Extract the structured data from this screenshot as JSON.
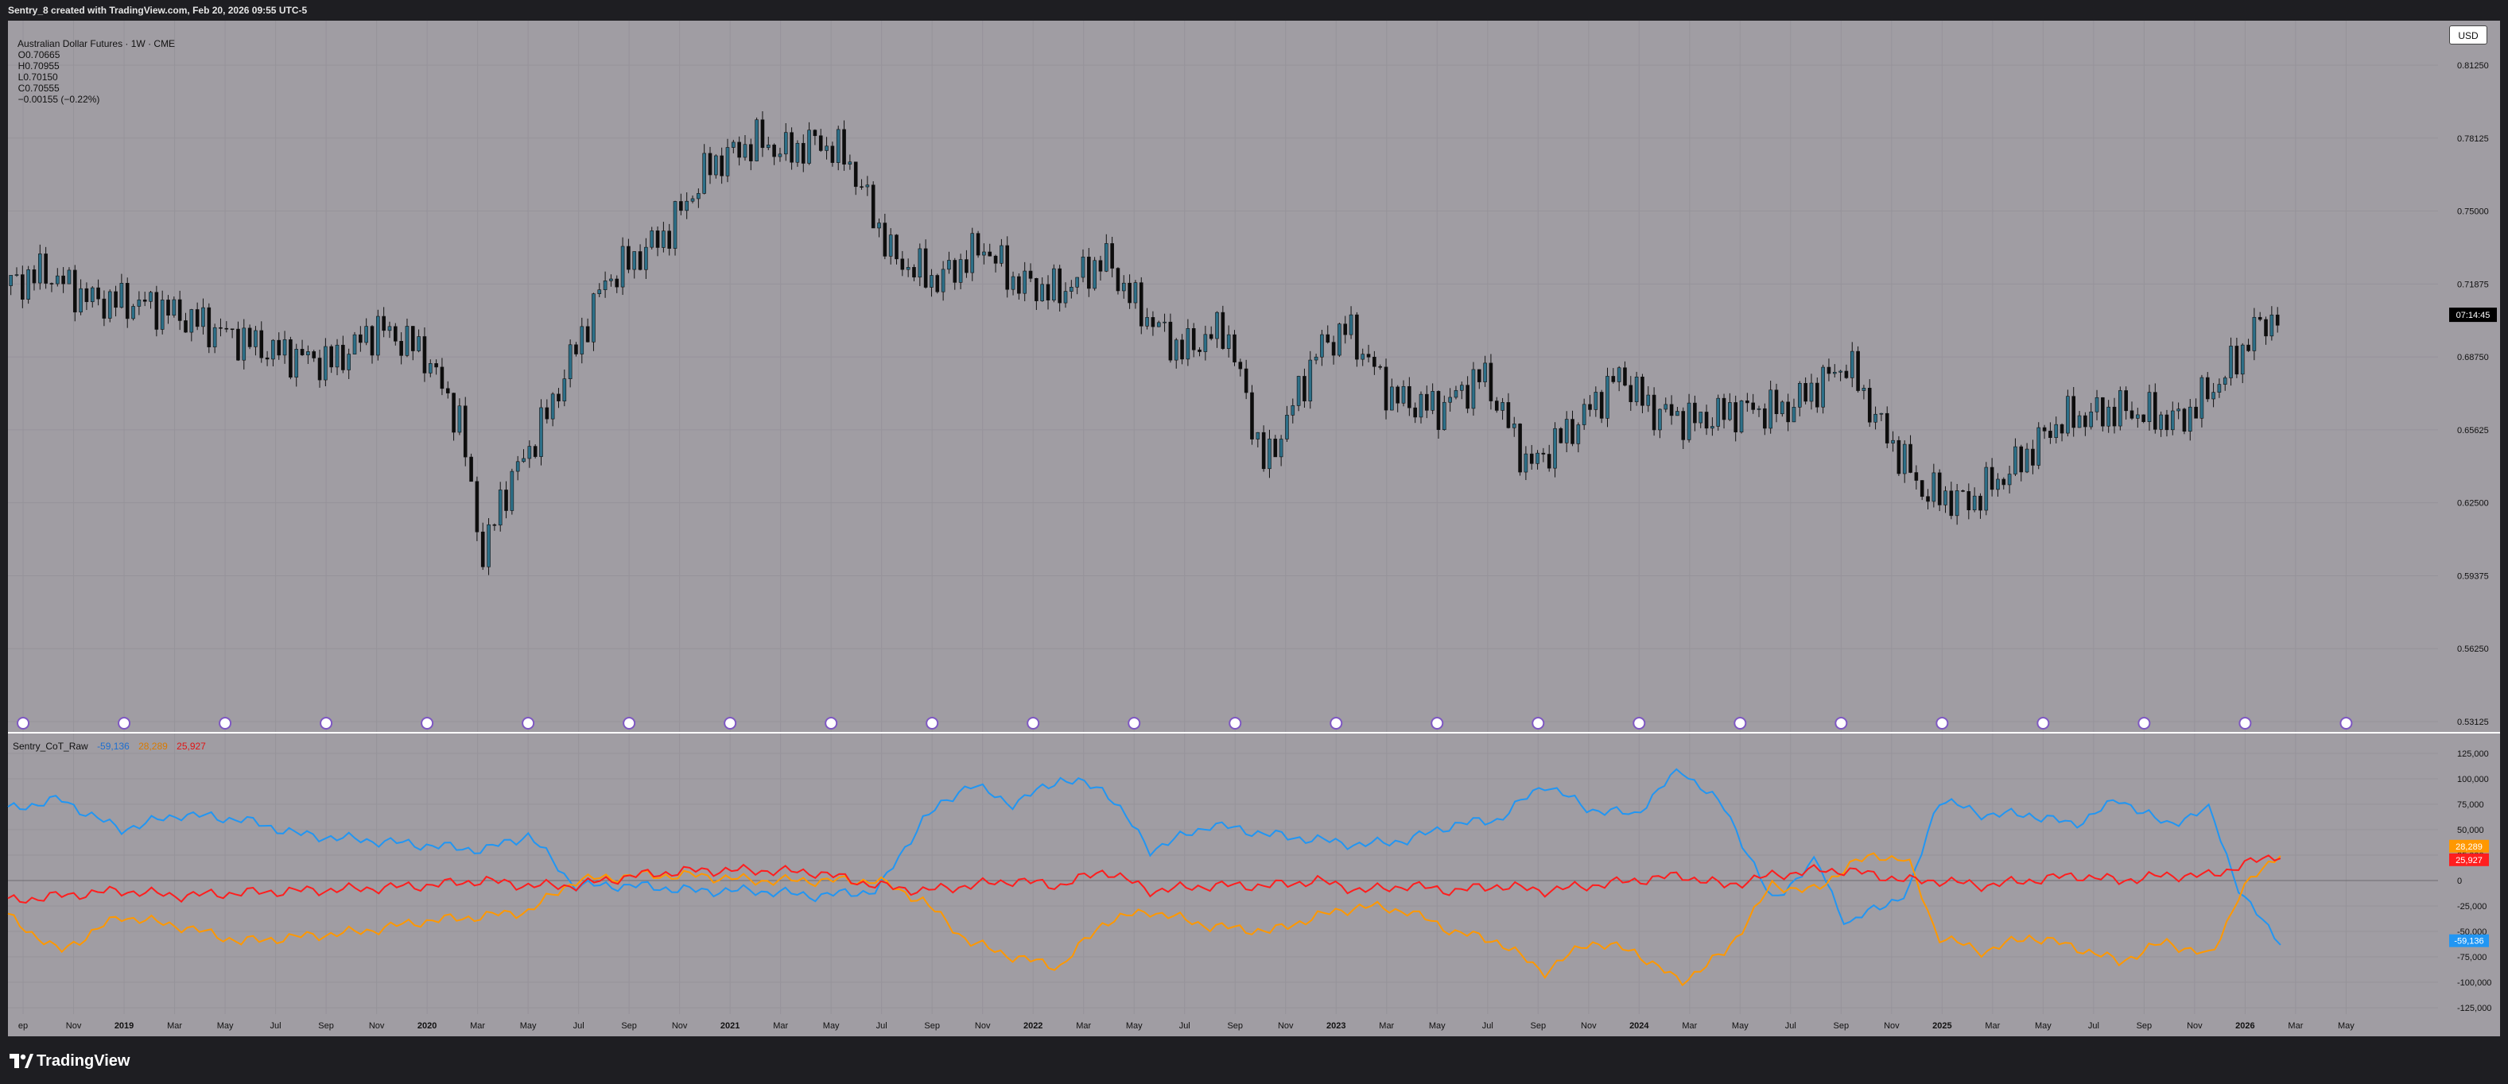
{
  "caption": "Sentry_8 created with TradingView.com, Feb 20, 2026 09:55 UTC-5",
  "currency_button": "USD",
  "footer_brand": "TradingView",
  "legend": {
    "symbol": "Australian Dollar Futures · 1W · CME",
    "open": "O0.70665",
    "high": "H0.70955",
    "low": "L0.70150",
    "close": "C0.70555",
    "change": "−0.00155 (−0.22%)"
  },
  "indicator_legend": {
    "name": "Sentry_CoT_Raw",
    "value_blue": "-59,136",
    "value_orange": "28,289",
    "value_red": "25,927"
  },
  "time_axis_labels": [
    "ep",
    "Nov",
    "2019",
    "Mar",
    "May",
    "Jul",
    "Sep",
    "Nov",
    "2020",
    "Mar",
    "May",
    "Jul",
    "Sep",
    "Nov",
    "2021",
    "Mar",
    "May",
    "Jul",
    "Sep",
    "Nov",
    "2022",
    "Mar",
    "May",
    "Jul",
    "Sep",
    "Nov",
    "2023",
    "Mar",
    "May",
    "Jul",
    "Sep",
    "Nov",
    "2024",
    "Mar",
    "May",
    "Jul",
    "Sep",
    "Nov",
    "2025",
    "Mar",
    "May",
    "Jul",
    "Sep",
    "Nov",
    "2026",
    "Mar",
    "May"
  ],
  "colors": {
    "background": "#a09da3",
    "candle_up": "#2c6f88",
    "candle_down": "#0d0d0d",
    "blue_line": "#2196f3",
    "orange_line": "#ff9800",
    "red_line": "#ff1e1e"
  },
  "chart_data": [
    {
      "type": "candlestick",
      "title": "Australian Dollar Futures · 1W · CME",
      "ylim": [
        0.53125,
        0.8125
      ],
      "y_ticks": [
        "0.81250",
        "0.78125",
        "0.75000",
        "0.71875",
        "0.68750",
        "0.65625",
        "0.62500",
        "0.59375",
        "0.56250",
        "0.53125"
      ],
      "current_label": "07:14:45",
      "current_price": 0.70555,
      "series_anchors": {
        "x_years": [
          2018.63,
          2018.75,
          2018.9,
          2019.1,
          2019.3,
          2019.5,
          2019.7,
          2019.85,
          2020.0,
          2020.12,
          2020.2,
          2020.25,
          2020.4,
          2020.6,
          2020.8,
          2020.95,
          2021.1,
          2021.2,
          2021.3,
          2021.4,
          2021.55,
          2021.7,
          2021.85,
          2021.95,
          2022.1,
          2022.25,
          2022.35,
          2022.5,
          2022.65,
          2022.78,
          2022.95,
          2023.05,
          2023.2,
          2023.35,
          2023.5,
          2023.65,
          2023.8,
          2023.95,
          2024.05,
          2024.2,
          2024.35,
          2024.5,
          2024.6,
          2024.7,
          2024.8,
          2024.95,
          2025.1,
          2025.25,
          2025.4,
          2025.6,
          2025.8,
          2025.95,
          2026.05,
          2026.13
        ],
        "close": [
          0.718,
          0.724,
          0.712,
          0.71,
          0.7,
          0.69,
          0.685,
          0.7,
          0.69,
          0.66,
          0.6,
          0.625,
          0.66,
          0.72,
          0.74,
          0.77,
          0.78,
          0.775,
          0.78,
          0.773,
          0.73,
          0.72,
          0.735,
          0.72,
          0.715,
          0.73,
          0.71,
          0.69,
          0.7,
          0.64,
          0.69,
          0.7,
          0.67,
          0.665,
          0.68,
          0.64,
          0.658,
          0.68,
          0.665,
          0.66,
          0.665,
          0.665,
          0.675,
          0.685,
          0.66,
          0.63,
          0.625,
          0.64,
          0.66,
          0.665,
          0.66,
          0.68,
          0.7,
          0.706
        ]
      }
    },
    {
      "type": "line",
      "title": "Sentry_CoT_Raw",
      "ylim": [
        -125000,
        125000
      ],
      "y_ticks": [
        "125,000",
        "100,000",
        "75,000",
        "50,000",
        "25,000",
        "0",
        "-25,000",
        "-50,000",
        "-75,000",
        "-100,000",
        "-125,000"
      ],
      "x_years": [
        2018.63,
        2018.8,
        2019.0,
        2019.2,
        2019.4,
        2019.6,
        2019.8,
        2020.0,
        2020.2,
        2020.35,
        2020.5,
        2020.7,
        2020.9,
        2021.1,
        2021.3,
        2021.5,
        2021.65,
        2021.8,
        2021.95,
        2022.1,
        2022.25,
        2022.4,
        2022.6,
        2022.8,
        2022.95,
        2023.1,
        2023.25,
        2023.4,
        2023.55,
        2023.7,
        2023.85,
        2024.0,
        2024.15,
        2024.3,
        2024.45,
        2024.6,
        2024.7,
        2024.8,
        2024.9,
        2025.0,
        2025.15,
        2025.3,
        2025.45,
        2025.6,
        2025.75,
        2025.9,
        2026.0,
        2026.13
      ],
      "series": [
        {
          "color": "blue",
          "values": [
            70000,
            80000,
            50000,
            65000,
            60000,
            45000,
            40000,
            35000,
            30000,
            45000,
            -5000,
            -5000,
            -10000,
            -10000,
            -15000,
            -10000,
            60000,
            95000,
            75000,
            100000,
            90000,
            30000,
            55000,
            45000,
            40000,
            35000,
            40000,
            55000,
            60000,
            95000,
            70000,
            65000,
            110000,
            70000,
            -20000,
            20000,
            -45000,
            -25000,
            -15000,
            80000,
            65000,
            65000,
            55000,
            80000,
            55000,
            70000,
            -15000,
            -59136
          ]
        },
        {
          "color": "orange",
          "values": [
            -35000,
            -70000,
            -35000,
            -45000,
            -60000,
            -55000,
            -50000,
            -40000,
            -35000,
            -30000,
            0,
            5000,
            5000,
            0,
            0,
            0,
            -20000,
            -60000,
            -75000,
            -85000,
            -40000,
            -30000,
            -45000,
            -50000,
            -35000,
            -25000,
            -30000,
            -50000,
            -60000,
            -90000,
            -60000,
            -70000,
            -100000,
            -70000,
            -5000,
            -10000,
            15000,
            25000,
            20000,
            -55000,
            -70000,
            -55000,
            -65000,
            -80000,
            -60000,
            -75000,
            -10000,
            28289
          ]
        },
        {
          "color": "red",
          "values": [
            -20000,
            -15000,
            -10000,
            -15000,
            -12000,
            -10000,
            -8000,
            -5000,
            0,
            -5000,
            -5000,
            5000,
            10000,
            10000,
            8000,
            -5000,
            -10000,
            -5000,
            0,
            -5000,
            10000,
            -10000,
            -5000,
            -5000,
            0,
            -10000,
            -5000,
            -10000,
            -5000,
            -10000,
            -5000,
            0,
            5000,
            -5000,
            5000,
            10000,
            10000,
            5000,
            0,
            0,
            -5000,
            0,
            5000,
            0,
            5000,
            5000,
            15000,
            25927
          ]
        }
      ]
    }
  ]
}
